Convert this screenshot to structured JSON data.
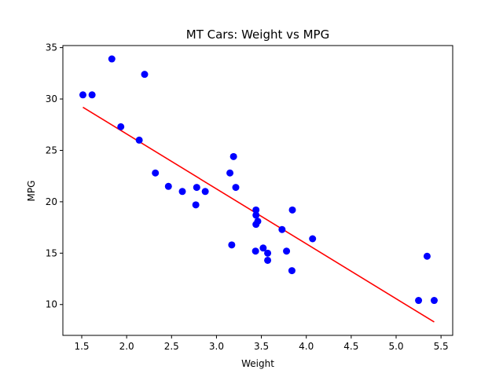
{
  "chart_data": {
    "type": "scatter",
    "title": "MT Cars: Weight vs MPG",
    "xlabel": "Weight",
    "ylabel": "MPG",
    "xlim": [
      1.29,
      5.63
    ],
    "ylim": [
      7.0,
      35.2
    ],
    "xticks": [
      "1.5",
      "2.0",
      "2.5",
      "3.0",
      "3.5",
      "4.0",
      "4.5",
      "5.0",
      "5.5"
    ],
    "yticks": [
      "10",
      "15",
      "20",
      "25",
      "30",
      "35"
    ],
    "legend": "none",
    "grid": false,
    "point_color": "#0000ff",
    "line_color": "#ff0000",
    "series": [
      {
        "points": [
          [
            2.62,
            21.0
          ],
          [
            2.875,
            21.0
          ],
          [
            2.32,
            22.8
          ],
          [
            3.215,
            21.4
          ],
          [
            3.44,
            18.7
          ],
          [
            3.46,
            18.1
          ],
          [
            3.57,
            14.3
          ],
          [
            3.19,
            24.4
          ],
          [
            3.15,
            22.8
          ],
          [
            3.44,
            19.2
          ],
          [
            3.44,
            17.8
          ],
          [
            4.07,
            16.4
          ],
          [
            3.73,
            17.3
          ],
          [
            3.78,
            15.2
          ],
          [
            5.25,
            10.4
          ],
          [
            5.424,
            10.4
          ],
          [
            5.345,
            14.7
          ],
          [
            2.2,
            32.4
          ],
          [
            1.615,
            30.4
          ],
          [
            1.835,
            33.9
          ],
          [
            2.465,
            21.5
          ],
          [
            3.52,
            15.5
          ],
          [
            3.435,
            15.2
          ],
          [
            3.84,
            13.3
          ],
          [
            3.845,
            19.2
          ],
          [
            1.935,
            27.3
          ],
          [
            2.14,
            26.0
          ],
          [
            1.513,
            30.4
          ],
          [
            3.17,
            15.8
          ],
          [
            2.77,
            19.7
          ],
          [
            3.57,
            15.0
          ],
          [
            2.78,
            21.4
          ]
        ]
      }
    ],
    "fit_line": [
      [
        1.513,
        29.2
      ],
      [
        5.424,
        8.3
      ]
    ]
  }
}
